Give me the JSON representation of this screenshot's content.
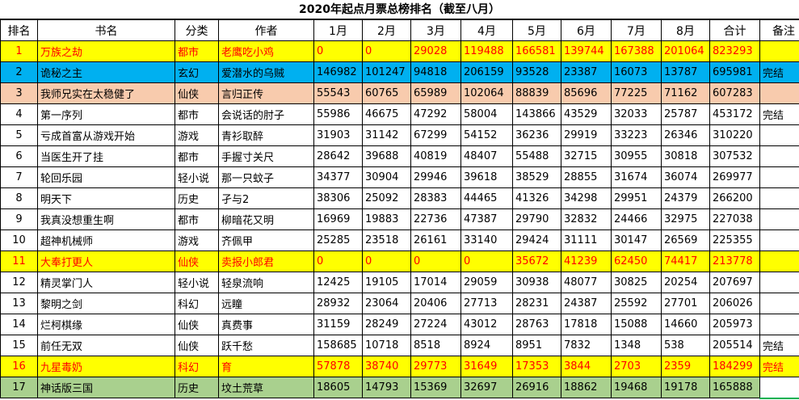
{
  "title": "2020年起点月票总榜排名（截至八月）",
  "headers": [
    "排名",
    "书名",
    "分类",
    "作者",
    "1月",
    "2月",
    "3月",
    "4月",
    "5月",
    "6月",
    "7月",
    "8月",
    "合计",
    "备注"
  ],
  "rows": [
    {
      "style": "yellow",
      "cells": [
        "1",
        "万族之劫",
        "都市",
        "老鹰吃小鸡",
        "0",
        "0",
        "29028",
        "119488",
        "166581",
        "139744",
        "167388",
        "201064",
        "823293",
        ""
      ]
    },
    {
      "style": "blue",
      "cells": [
        "2",
        "诡秘之主",
        "玄幻",
        "爱潜水的乌贼",
        "146982",
        "101247",
        "94818",
        "206159",
        "93528",
        "23387",
        "16073",
        "13787",
        "695981",
        "完结"
      ]
    },
    {
      "style": "peach",
      "cells": [
        "3",
        "我师兄实在太稳健了",
        "仙侠",
        "言归正传",
        "55543",
        "60765",
        "65989",
        "102064",
        "88839",
        "85696",
        "77225",
        "71162",
        "607283",
        ""
      ]
    },
    {
      "style": "",
      "cells": [
        "4",
        "第一序列",
        "都市",
        "会说话的肘子",
        "55986",
        "46675",
        "47292",
        "58004",
        "143866",
        "43529",
        "32033",
        "25787",
        "453172",
        "完结"
      ]
    },
    {
      "style": "",
      "cells": [
        "5",
        "亏成首富从游戏开始",
        "游戏",
        "青衫取醉",
        "31903",
        "31142",
        "67299",
        "54152",
        "36236",
        "29919",
        "33223",
        "26346",
        "310220",
        ""
      ]
    },
    {
      "style": "",
      "cells": [
        "6",
        "当医生开了挂",
        "都市",
        "手握寸关尺",
        "28642",
        "39688",
        "40819",
        "48407",
        "55488",
        "32715",
        "30955",
        "30818",
        "307532",
        ""
      ]
    },
    {
      "style": "",
      "cells": [
        "7",
        "轮回乐园",
        "轻小说",
        "那一只蚊子",
        "34377",
        "30904",
        "29946",
        "39618",
        "38529",
        "28855",
        "31674",
        "36074",
        "269977",
        ""
      ]
    },
    {
      "style": "",
      "cells": [
        "8",
        "明天下",
        "历史",
        "孑与2",
        "38306",
        "25092",
        "28383",
        "44465",
        "41326",
        "34298",
        "29951",
        "24379",
        "266200",
        ""
      ]
    },
    {
      "style": "",
      "cells": [
        "9",
        "我真没想重生啊",
        "都市",
        "柳暗花又明",
        "16969",
        "19883",
        "22736",
        "47387",
        "29790",
        "32832",
        "24466",
        "32975",
        "227038",
        ""
      ]
    },
    {
      "style": "",
      "cells": [
        "10",
        "超神机械师",
        "游戏",
        "齐佩甲",
        "25285",
        "23518",
        "26161",
        "33140",
        "29424",
        "31111",
        "30147",
        "26569",
        "225355",
        ""
      ]
    },
    {
      "style": "yellow",
      "cells": [
        "11",
        "大奉打更人",
        "仙侠",
        "卖报小郎君",
        "0",
        "0",
        "0",
        "0",
        "35672",
        "41239",
        "62450",
        "74417",
        "213778",
        ""
      ]
    },
    {
      "style": "",
      "cells": [
        "12",
        "精灵掌门人",
        "轻小说",
        "轻泉流响",
        "12425",
        "19105",
        "17014",
        "29059",
        "30938",
        "48077",
        "30825",
        "20254",
        "207697",
        ""
      ]
    },
    {
      "style": "",
      "cells": [
        "13",
        "黎明之剑",
        "科幻",
        "远瞳",
        "28932",
        "23064",
        "20406",
        "27713",
        "28231",
        "24387",
        "25592",
        "27701",
        "206026",
        ""
      ]
    },
    {
      "style": "",
      "cells": [
        "14",
        "烂柯棋缘",
        "仙侠",
        "真费事",
        "31159",
        "28249",
        "27224",
        "43012",
        "28763",
        "17818",
        "15088",
        "14660",
        "205973",
        ""
      ]
    },
    {
      "style": "",
      "cells": [
        "15",
        "前任无双",
        "仙侠",
        "跃千愁",
        "158685",
        "10718",
        "8518",
        "8924",
        "8951",
        "7832",
        "1348",
        "538",
        "205514",
        "完结"
      ]
    },
    {
      "style": "yellow",
      "cells": [
        "16",
        "九星毒奶",
        "科幻",
        "育",
        "57878",
        "38740",
        "29773",
        "31649",
        "17353",
        "3844",
        "2703",
        "2359",
        "184299",
        "完结"
      ]
    },
    {
      "style": "green",
      "cells": [
        "17",
        "神话版三国",
        "历史",
        "坟土荒草",
        "18605",
        "14793",
        "15369",
        "32697",
        "26916",
        "18862",
        "19468",
        "19178",
        "165888",
        ""
      ]
    }
  ]
}
